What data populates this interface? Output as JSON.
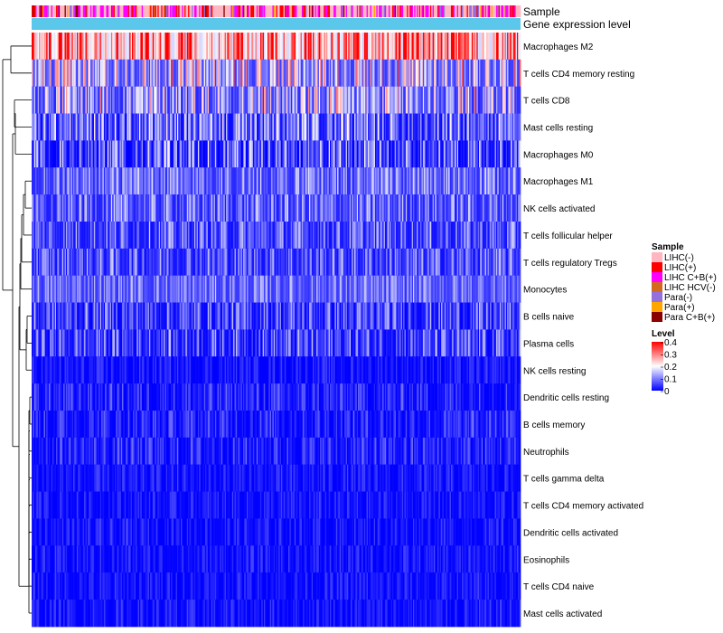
{
  "chart_data": {
    "type": "heatmap",
    "annotation_tracks": [
      "Sample",
      "Gene expression level"
    ],
    "rows": [
      {
        "label": "Macrophages M2",
        "mean": 0.26,
        "spread": 0.12
      },
      {
        "label": "T cells CD4 memory resting",
        "mean": 0.12,
        "spread": 0.1
      },
      {
        "label": "T cells CD8",
        "mean": 0.1,
        "spread": 0.09
      },
      {
        "label": "Mast cells resting",
        "mean": 0.06,
        "spread": 0.07
      },
      {
        "label": "Macrophages M0",
        "mean": 0.05,
        "spread": 0.07
      },
      {
        "label": "Macrophages M1",
        "mean": 0.07,
        "spread": 0.05
      },
      {
        "label": "NK cells activated",
        "mean": 0.06,
        "spread": 0.05
      },
      {
        "label": "T cells follicular helper",
        "mean": 0.05,
        "spread": 0.05
      },
      {
        "label": "T cells regulatory  Tregs",
        "mean": 0.05,
        "spread": 0.05
      },
      {
        "label": "Monocytes",
        "mean": 0.07,
        "spread": 0.04
      },
      {
        "label": "B cells naive",
        "mean": 0.04,
        "spread": 0.05
      },
      {
        "label": "Plasma cells",
        "mean": 0.04,
        "spread": 0.05
      },
      {
        "label": "NK cells resting",
        "mean": 0.01,
        "spread": 0.02
      },
      {
        "label": "Dendritic cells resting",
        "mean": 0.02,
        "spread": 0.03
      },
      {
        "label": "B cells memory",
        "mean": 0.02,
        "spread": 0.03
      },
      {
        "label": "Neutrophils",
        "mean": 0.02,
        "spread": 0.03
      },
      {
        "label": "T cells gamma delta",
        "mean": 0.01,
        "spread": 0.02
      },
      {
        "label": "T cells CD4 memory activated",
        "mean": 0.01,
        "spread": 0.02
      },
      {
        "label": "Dendritic cells activated",
        "mean": 0.01,
        "spread": 0.02
      },
      {
        "label": "Eosinophils",
        "mean": 0.01,
        "spread": 0.02
      },
      {
        "label": "T cells CD4 naive",
        "mean": 0.01,
        "spread": 0.02
      },
      {
        "label": "Mast cells activated",
        "mean": 0.01,
        "spread": 0.02
      }
    ],
    "n_samples": 400,
    "legend_sample": {
      "title": "Sample",
      "entries": [
        {
          "label": "LIHC(-)",
          "color": "#FFB6C1"
        },
        {
          "label": "LIHC(+)",
          "color": "#FF0000"
        },
        {
          "label": "LIHC C+B(+)",
          "color": "#FF00FF"
        },
        {
          "label": "LIHC HCV(-)",
          "color": "#D2691E"
        },
        {
          "label": "Para(-)",
          "color": "#9370DB"
        },
        {
          "label": "Para(+)",
          "color": "#FFA500"
        },
        {
          "label": "Para C+B(+)",
          "color": "#8B0000"
        }
      ]
    },
    "sample_track_weights": [
      0.42,
      0.16,
      0.28,
      0.02,
      0.08,
      0.02,
      0.02
    ],
    "expression_track_color": "#5BC8EB",
    "legend_level": {
      "title": "Level",
      "ticks": [
        "0.4",
        "0.3",
        "0.2",
        "0.1",
        "0"
      ],
      "range": [
        0,
        0.4
      ],
      "color_low": "#0000FF",
      "color_mid": "#FFFFFF",
      "color_high": "#FF0000"
    }
  }
}
